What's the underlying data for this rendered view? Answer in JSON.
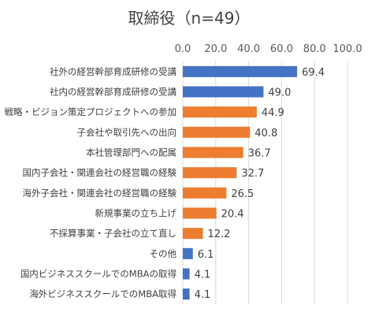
{
  "chart_data": {
    "type": "bar",
    "orientation": "horizontal",
    "title": "取締役（n=49）",
    "xlim": [
      0,
      100
    ],
    "ticks": [
      "0.0",
      "20.0",
      "40.0",
      "60.0",
      "80.0",
      "100.0"
    ],
    "grid": true,
    "categories": [
      "社外の経営幹部育成研修の受講",
      "社内の経営幹部育成研修の受講",
      "戦略・ビジョン策定プロジェクトへの参加",
      "子会社や取引先への出向",
      "本社管理部門への配属",
      "国内子会社・関連会社の経営職の経験",
      "海外子会社・関連会社の経営職の経験",
      "新規事業の立ち上げ",
      "不採算事業・子会社の立て直し",
      "その他",
      "国内ビジネススクールでのMBAの取得",
      "海外ビジネススクールでのMBA取得"
    ],
    "values": [
      69.4,
      49.0,
      44.9,
      40.8,
      36.7,
      32.7,
      26.5,
      20.4,
      12.2,
      6.1,
      4.1,
      4.1
    ],
    "value_labels": [
      "69.4",
      "49.0",
      "44.9",
      "40.8",
      "36.7",
      "32.7",
      "26.5",
      "20.4",
      "12.2",
      "6.1",
      "4.1",
      "4.1"
    ],
    "bar_colors": [
      "#4472C4",
      "#4472C4",
      "#ED7D31",
      "#ED7D31",
      "#ED7D31",
      "#ED7D31",
      "#ED7D31",
      "#ED7D31",
      "#ED7D31",
      "#4472C4",
      "#4472C4",
      "#4472C4"
    ],
    "colors": {
      "blue": "#4472C4",
      "orange": "#ED7D31",
      "grid": "#D9D9D9"
    }
  }
}
